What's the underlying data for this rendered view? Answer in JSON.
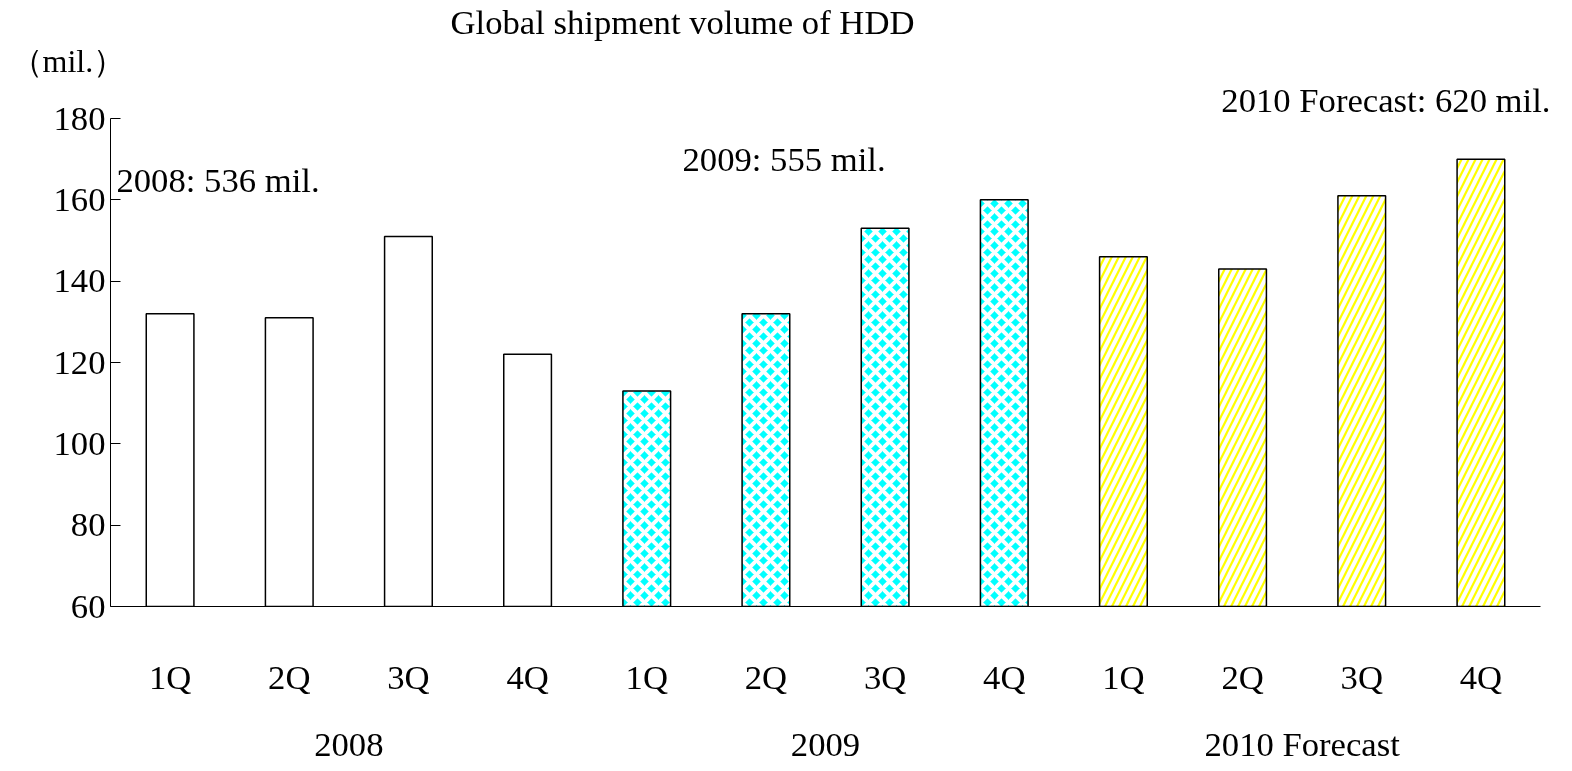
{
  "chart_data": {
    "type": "bar",
    "title": "Global shipment volume of HDD",
    "ylabel": "（mil.）",
    "categories": [
      "1Q",
      "2Q",
      "3Q",
      "4Q",
      "1Q",
      "2Q",
      "3Q",
      "4Q",
      "1Q",
      "2Q",
      "3Q",
      "4Q"
    ],
    "values": [
      132,
      131,
      151,
      122,
      113,
      132,
      153,
      160,
      146,
      143,
      161,
      170
    ],
    "colors": [
      "#ffffff",
      "#ffffff",
      "#ffffff",
      "#ffffff",
      "#00ffff",
      "#00ffff",
      "#00ffff",
      "#00ffff",
      "#ffff00",
      "#ffff00",
      "#ffff00",
      "#ffff00"
    ],
    "ylim": [
      60,
      180
    ],
    "yticks": [
      60,
      80,
      100,
      120,
      140,
      160,
      180
    ],
    "grid": false,
    "annotations": [
      "2008: 536 mil.",
      "2009: 555 mil.",
      "2010 Forecast: 620 mil.",
      "2008",
      "2009",
      "2010 Forecast"
    ]
  }
}
